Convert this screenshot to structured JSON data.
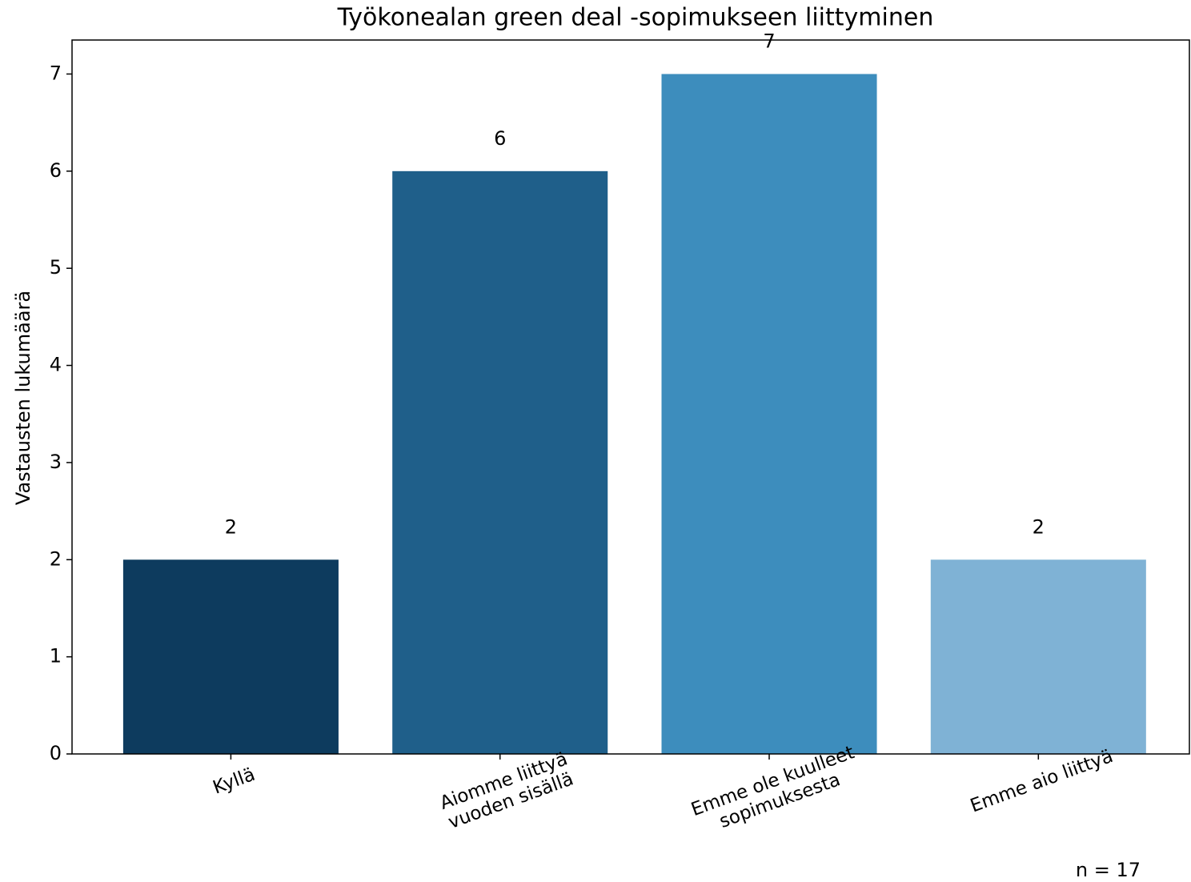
{
  "chart_data": {
    "type": "bar",
    "title": "Työkonealan green deal -sopimukseen liittyminen",
    "ylabel": "Vastausten lukumäärä",
    "annotation": "n = 17",
    "categories": [
      "Kyllä",
      "Aiomme liittyä\nvuoden sisällä",
      "Emme ole kuulleet\nsopimuksesta",
      "Emme aio liittyä"
    ],
    "values": [
      2,
      6,
      7,
      2
    ],
    "colors": [
      "#0d3b5e",
      "#1f5f8a",
      "#3d8dbd",
      "#7fb2d5"
    ],
    "ylim": [
      0,
      7.35
    ],
    "yticks": [
      0,
      1,
      2,
      3,
      4,
      5,
      6,
      7
    ],
    "grid": false
  }
}
